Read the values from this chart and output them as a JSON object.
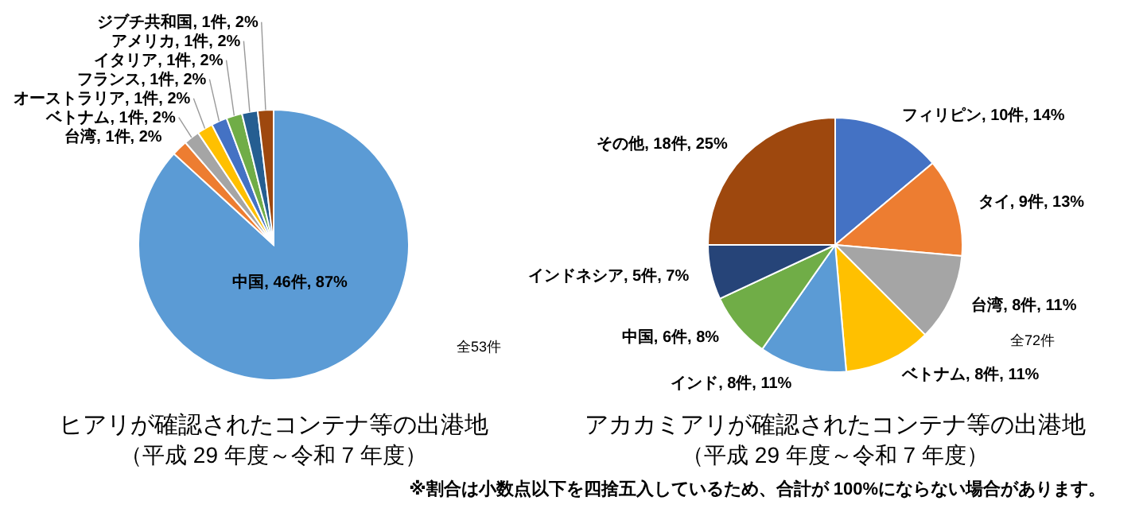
{
  "chart_data": [
    {
      "type": "pie",
      "title": "ヒアリが確認されたコンテナ等の出港地",
      "subtitle": "（平成 29 年度～令和 7 年度）",
      "categories": [
        "中国",
        "台湾",
        "ベトナム",
        "オーストラリア",
        "フランス",
        "イタリア",
        "アメリカ",
        "ジブチ共和国"
      ],
      "values": [
        46,
        1,
        1,
        1,
        1,
        1,
        1,
        1
      ],
      "colors": [
        "#5b9bd5",
        "#ed7d31",
        "#a5a5a5",
        "#ffc000",
        "#4472c4",
        "#70ad47",
        "#255e91",
        "#9e480e"
      ],
      "value_labels": [
        "46件, 87%",
        "1件, 2%",
        "1件, 2%",
        "1件, 2%",
        "1件, 2%",
        "1件, 2%",
        "1件, 2%",
        "1件, 2%"
      ],
      "annotations": [
        "全53件"
      ]
    },
    {
      "type": "pie",
      "title": "アカカミアリが確認されたコンテナ等の出港地",
      "subtitle": "（平成 29 年度～令和 7 年度）",
      "categories": [
        "フィリピン",
        "タイ",
        "台湾",
        "ベトナム",
        "インド",
        "中国",
        "インドネシア",
        "その他"
      ],
      "values": [
        10,
        9,
        8,
        8,
        8,
        6,
        5,
        18
      ],
      "colors": [
        "#4472c4",
        "#ed7d31",
        "#a5a5a5",
        "#ffc000",
        "#5b9bd5",
        "#70ad47",
        "#264478",
        "#9e480e"
      ],
      "value_labels": [
        "10件, 14%",
        "9件, 13%",
        "8件, 11%",
        "8件, 11%",
        "8件, 11%",
        "6件, 8%",
        "5件, 7%",
        "18件, 25%"
      ],
      "annotations": [
        "全72件",
        "※割合は小数点以下を四捨五入しているため、合計が 100%にならない場合があります。"
      ]
    }
  ]
}
